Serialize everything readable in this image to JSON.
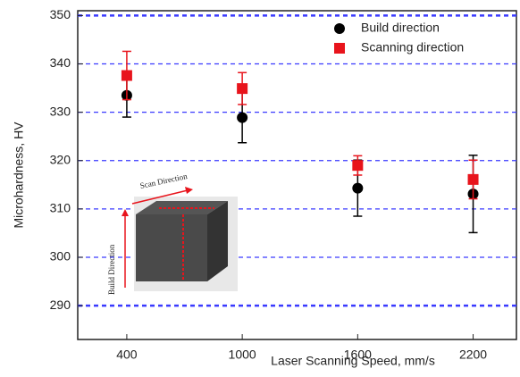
{
  "chart_data": {
    "type": "scatter",
    "xlabel": "Laser Scanning Speed, mm/s",
    "ylabel": "Microhardness, HV",
    "x": [
      400,
      1000,
      1600,
      2200
    ],
    "xlim": [
      145,
      2425
    ],
    "xticks": [
      400,
      1000,
      1600,
      2200
    ],
    "ylim": [
      283,
      351
    ],
    "yticks": [
      290,
      300,
      310,
      320,
      330,
      340,
      350
    ],
    "grid": true,
    "legend": "upper right",
    "series": [
      {
        "name": "Build direction",
        "color": "#000000",
        "marker": "circle",
        "values": [
          333.5,
          328.9,
          314.3,
          313.1
        ],
        "errors": [
          4.5,
          5.2,
          5.8,
          8.0
        ]
      },
      {
        "name": "Scanning direction",
        "color": "#e8141c",
        "marker": "square",
        "values": [
          337.6,
          334.9,
          319.0,
          316.1
        ],
        "errors": [
          5.0,
          3.3,
          2.0,
          4.0
        ]
      }
    ],
    "annotations": [
      "Scan Direction",
      "Build Direction"
    ]
  }
}
